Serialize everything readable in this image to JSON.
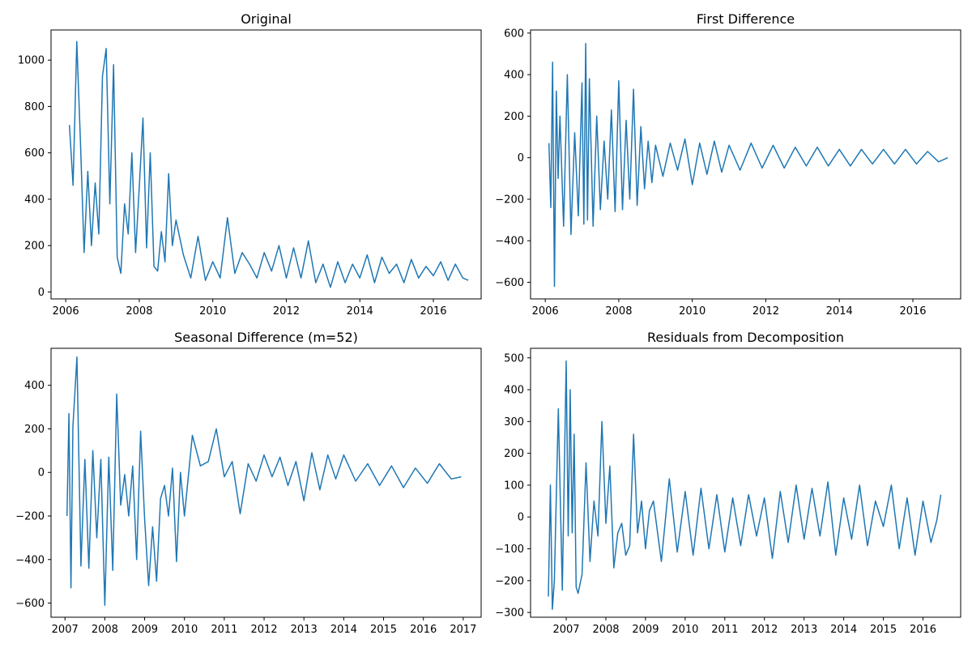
{
  "figure": {
    "style": {
      "line_color": "#1f77b4",
      "axis_color": "#000000",
      "background": "#ffffff"
    }
  },
  "chart_data": [
    {
      "type": "line",
      "title": "Original",
      "xlabel": "",
      "ylabel": "",
      "xlim": [
        2005.6,
        2017.3
      ],
      "ylim": [
        -30,
        1130
      ],
      "xticks": [
        2006,
        2008,
        2010,
        2012,
        2014,
        2016
      ],
      "yticks": [
        0,
        200,
        400,
        600,
        800,
        1000
      ],
      "grid": false,
      "series": [
        {
          "x": [
            2006.1,
            2006.2,
            2006.3,
            2006.4,
            2006.5,
            2006.6,
            2006.7,
            2006.8,
            2006.9,
            2007.0,
            2007.1,
            2007.2,
            2007.3,
            2007.4,
            2007.5,
            2007.6,
            2007.7,
            2007.8,
            2007.9,
            2008.0,
            2008.1,
            2008.2,
            2008.3,
            2008.4,
            2008.5,
            2008.6,
            2008.7,
            2008.8,
            2008.9,
            2009.0,
            2009.2,
            2009.4,
            2009.6,
            2009.8,
            2010.0,
            2010.2,
            2010.4,
            2010.6,
            2010.8,
            2011.0,
            2011.2,
            2011.4,
            2011.6,
            2011.8,
            2012.0,
            2012.2,
            2012.4,
            2012.6,
            2012.8,
            2013.0,
            2013.2,
            2013.4,
            2013.6,
            2013.8,
            2014.0,
            2014.2,
            2014.4,
            2014.6,
            2014.8,
            2015.0,
            2015.2,
            2015.4,
            2015.6,
            2015.8,
            2016.0,
            2016.2,
            2016.4,
            2016.6,
            2016.8,
            2016.95
          ],
          "y": [
            720,
            460,
            1080,
            650,
            170,
            520,
            200,
            470,
            250,
            930,
            1050,
            380,
            980,
            150,
            80,
            380,
            250,
            600,
            170,
            450,
            750,
            190,
            600,
            110,
            90,
            260,
            130,
            510,
            200,
            310,
            160,
            60,
            240,
            50,
            130,
            60,
            320,
            80,
            170,
            120,
            60,
            170,
            90,
            200,
            60,
            190,
            60,
            220,
            40,
            120,
            20,
            130,
            40,
            120,
            60,
            160,
            40,
            150,
            80,
            120,
            40,
            140,
            60,
            110,
            70,
            130,
            50,
            120,
            60,
            50
          ]
        }
      ]
    },
    {
      "type": "line",
      "title": "First Difference",
      "xlabel": "",
      "ylabel": "",
      "xlim": [
        2005.6,
        2017.3
      ],
      "ylim": [
        -680,
        615
      ],
      "xticks": [
        2006,
        2008,
        2010,
        2012,
        2014,
        2016
      ],
      "yticks": [
        -600,
        -400,
        -200,
        0,
        200,
        400,
        600
      ],
      "grid": false,
      "series": [
        {
          "x": [
            2006.1,
            2006.15,
            2006.2,
            2006.25,
            2006.3,
            2006.35,
            2006.4,
            2006.5,
            2006.6,
            2006.7,
            2006.8,
            2006.9,
            2007.0,
            2007.05,
            2007.1,
            2007.15,
            2007.2,
            2007.3,
            2007.4,
            2007.5,
            2007.6,
            2007.7,
            2007.8,
            2007.9,
            2008.0,
            2008.1,
            2008.2,
            2008.3,
            2008.4,
            2008.5,
            2008.6,
            2008.7,
            2008.8,
            2008.9,
            2009.0,
            2009.2,
            2009.4,
            2009.6,
            2009.8,
            2010.0,
            2010.2,
            2010.4,
            2010.6,
            2010.8,
            2011.0,
            2011.3,
            2011.6,
            2011.9,
            2012.2,
            2012.5,
            2012.8,
            2013.1,
            2013.4,
            2013.7,
            2014.0,
            2014.3,
            2014.6,
            2014.9,
            2015.2,
            2015.5,
            2015.8,
            2016.1,
            2016.4,
            2016.7,
            2016.95
          ],
          "y": [
            70,
            -240,
            460,
            -620,
            320,
            -100,
            200,
            -330,
            400,
            -370,
            120,
            -280,
            360,
            -320,
            550,
            -300,
            380,
            -330,
            200,
            -250,
            80,
            -200,
            230,
            -260,
            370,
            -250,
            180,
            -200,
            330,
            -230,
            150,
            -150,
            80,
            -120,
            60,
            -90,
            70,
            -60,
            90,
            -130,
            70,
            -80,
            80,
            -70,
            60,
            -60,
            70,
            -50,
            60,
            -50,
            50,
            -40,
            50,
            -40,
            40,
            -40,
            40,
            -30,
            40,
            -30,
            40,
            -30,
            30,
            -20,
            0
          ]
        }
      ]
    },
    {
      "type": "line",
      "title": "Seasonal Difference (m=52)",
      "xlabel": "",
      "ylabel": "",
      "xlim": [
        2006.65,
        2017.45
      ],
      "ylim": [
        -665,
        570
      ],
      "xticks": [
        2007,
        2008,
        2009,
        2010,
        2011,
        2012,
        2013,
        2014,
        2015,
        2016,
        2017
      ],
      "yticks": [
        -600,
        -400,
        -200,
        0,
        200,
        400
      ],
      "grid": false,
      "series": [
        {
          "x": [
            2007.05,
            2007.1,
            2007.15,
            2007.2,
            2007.3,
            2007.4,
            2007.5,
            2007.6,
            2007.7,
            2007.8,
            2007.9,
            2008.0,
            2008.1,
            2008.2,
            2008.3,
            2008.4,
            2008.5,
            2008.6,
            2008.7,
            2008.8,
            2008.9,
            2009.0,
            2009.1,
            2009.2,
            2009.3,
            2009.4,
            2009.5,
            2009.6,
            2009.7,
            2009.8,
            2009.9,
            2010.0,
            2010.2,
            2010.4,
            2010.6,
            2010.8,
            2011.0,
            2011.2,
            2011.4,
            2011.6,
            2011.8,
            2012.0,
            2012.2,
            2012.4,
            2012.6,
            2012.8,
            2013.0,
            2013.2,
            2013.4,
            2013.6,
            2013.8,
            2014.0,
            2014.3,
            2014.6,
            2014.9,
            2015.2,
            2015.5,
            2015.8,
            2016.1,
            2016.4,
            2016.7,
            2016.95
          ],
          "y": [
            -200,
            270,
            -530,
            210,
            530,
            -430,
            60,
            -440,
            100,
            -300,
            60,
            -610,
            70,
            -450,
            360,
            -150,
            -10,
            -200,
            30,
            -400,
            190,
            -210,
            -520,
            -250,
            -500,
            -120,
            -60,
            -200,
            20,
            -410,
            0,
            -200,
            170,
            30,
            50,
            200,
            -20,
            50,
            -190,
            40,
            -40,
            80,
            -20,
            70,
            -60,
            50,
            -130,
            90,
            -80,
            80,
            -30,
            80,
            -40,
            40,
            -60,
            30,
            -70,
            20,
            -50,
            40,
            -30,
            -20
          ]
        }
      ]
    },
    {
      "type": "line",
      "title": "Residuals from Decomposition",
      "xlabel": "",
      "ylabel": "",
      "xlim": [
        2006.1,
        2016.95
      ],
      "ylim": [
        -315,
        530
      ],
      "xticks": [
        2007,
        2008,
        2009,
        2010,
        2011,
        2012,
        2013,
        2014,
        2015,
        2016
      ],
      "yticks": [
        -300,
        -200,
        -100,
        0,
        100,
        200,
        300,
        400,
        500
      ],
      "grid": false,
      "series": [
        {
          "x": [
            2006.55,
            2006.6,
            2006.65,
            2006.7,
            2006.8,
            2006.9,
            2006.95,
            2007.0,
            2007.05,
            2007.1,
            2007.15,
            2007.2,
            2007.25,
            2007.3,
            2007.4,
            2007.5,
            2007.6,
            2007.7,
            2007.8,
            2007.9,
            2008.0,
            2008.1,
            2008.2,
            2008.3,
            2008.4,
            2008.5,
            2008.6,
            2008.7,
            2008.8,
            2008.9,
            2009.0,
            2009.1,
            2009.2,
            2009.4,
            2009.6,
            2009.8,
            2010.0,
            2010.2,
            2010.4,
            2010.6,
            2010.8,
            2011.0,
            2011.2,
            2011.4,
            2011.6,
            2011.8,
            2012.0,
            2012.2,
            2012.4,
            2012.6,
            2012.8,
            2013.0,
            2013.2,
            2013.4,
            2013.6,
            2013.8,
            2014.0,
            2014.2,
            2014.4,
            2014.6,
            2014.8,
            2015.0,
            2015.2,
            2015.4,
            2015.6,
            2015.8,
            2016.0,
            2016.2,
            2016.35,
            2016.45
          ],
          "y": [
            -250,
            100,
            -290,
            -200,
            340,
            -230,
            130,
            490,
            -60,
            400,
            -50,
            260,
            -220,
            -240,
            -180,
            170,
            -140,
            50,
            -60,
            300,
            -20,
            160,
            -160,
            -50,
            -20,
            -120,
            -90,
            260,
            -50,
            50,
            -100,
            20,
            50,
            -140,
            120,
            -110,
            80,
            -120,
            90,
            -100,
            70,
            -110,
            60,
            -90,
            70,
            -60,
            60,
            -130,
            80,
            -80,
            100,
            -70,
            90,
            -60,
            110,
            -120,
            60,
            -70,
            100,
            -90,
            50,
            -30,
            100,
            -100,
            60,
            -120,
            50,
            -80,
            -10,
            70
          ]
        }
      ]
    }
  ]
}
